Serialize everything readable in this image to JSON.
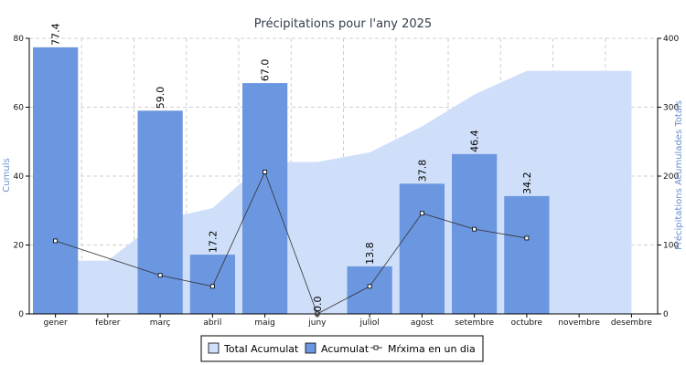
{
  "chart_data": {
    "type": "bar",
    "title": "Précipitations pour l'any 2025",
    "categories": [
      "gener",
      "febrer",
      "març",
      "abril",
      "maig",
      "juny",
      "juliol",
      "agost",
      "setembre",
      "octubre",
      "novembre",
      "desembre"
    ],
    "ylabel_left": "Cumuls",
    "ylabel_right": "Précipitations Acumulades Totals",
    "ylim_left": [
      0,
      80
    ],
    "yticks_left": [
      0,
      20,
      40,
      60,
      80
    ],
    "ylim_right": [
      0,
      400
    ],
    "yticks_right": [
      0,
      100,
      200,
      300,
      400
    ],
    "grid": true,
    "legend_position": "bottom",
    "series": [
      {
        "name": "Total Acumulat",
        "kind": "area",
        "axis": "right",
        "color": "#d0dff9",
        "values": [
          77.4,
          77.4,
          136.4,
          153.6,
          220.6,
          220.6,
          234.4,
          272.2,
          318.6,
          352.8,
          352.8,
          352.8
        ]
      },
      {
        "name": "Acumulat",
        "kind": "bar",
        "axis": "left",
        "color": "#6b96e0",
        "values": [
          77.4,
          null,
          59.0,
          17.2,
          67.0,
          0.0,
          13.8,
          37.8,
          46.4,
          34.2,
          null,
          null
        ],
        "labels": [
          "77.4",
          "",
          "59.0",
          "17.2",
          "67.0",
          "0.0",
          "13.8",
          "37.8",
          "46.4",
          "34.2",
          "",
          ""
        ]
      },
      {
        "name": "Mŕxima en un dia",
        "kind": "line",
        "axis": "left",
        "color": "#333333",
        "values": [
          21.2,
          null,
          11.2,
          8.0,
          41.2,
          0.0,
          8.0,
          29.2,
          24.6,
          22.0,
          null,
          null
        ]
      }
    ]
  }
}
